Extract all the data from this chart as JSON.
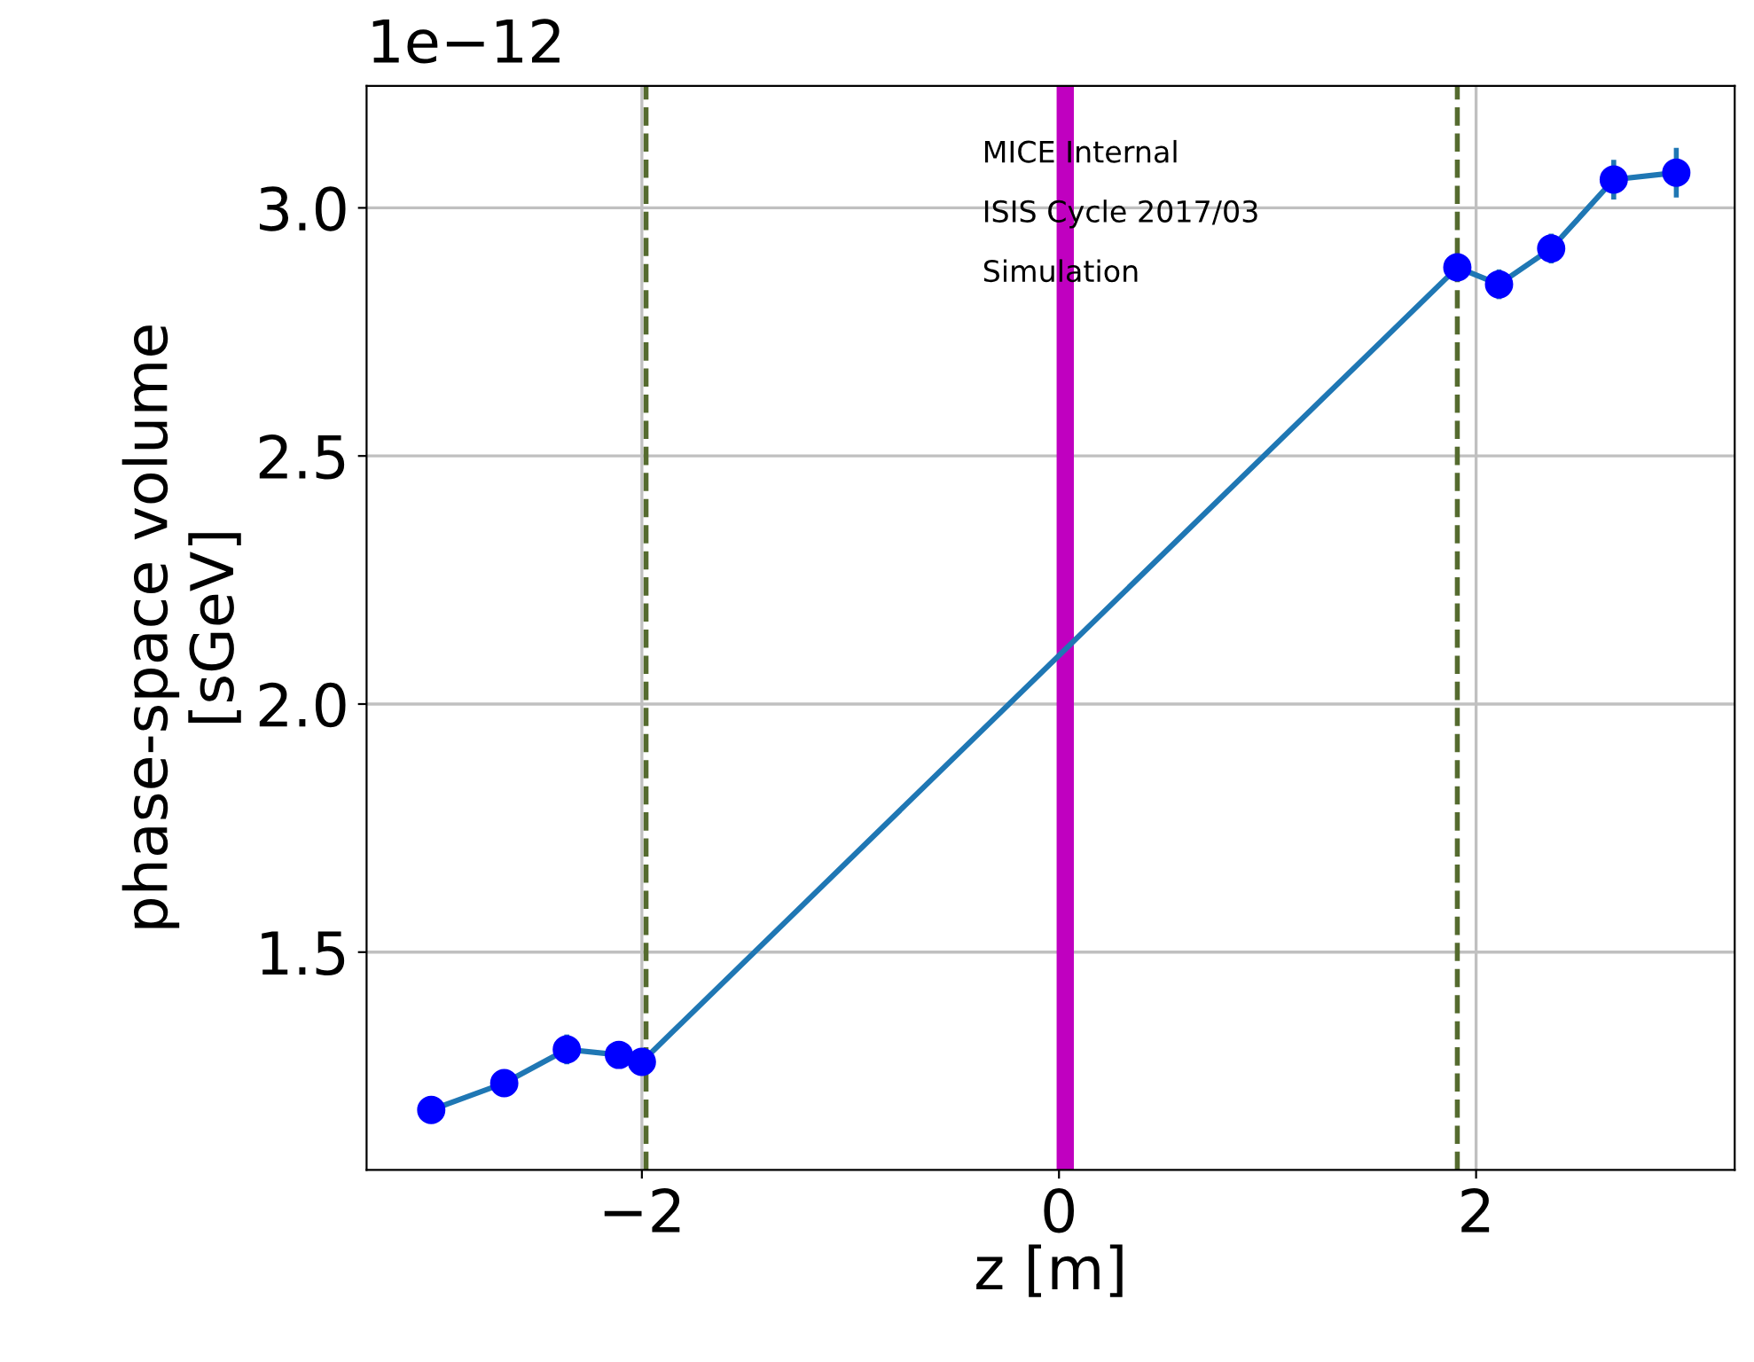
{
  "chart_data": {
    "type": "line",
    "xlabel": "z [m]",
    "ylabel": "phase-space volume\n[sGeV]",
    "x": [
      -3.01,
      -2.66,
      -2.36,
      -2.11,
      -2.0,
      1.91,
      2.11,
      2.36,
      2.66,
      2.96
    ],
    "series": [
      {
        "color": "#1f77b4",
        "values": [
          1.182,
          1.236,
          1.304,
          1.293,
          1.279,
          2.88,
          2.846,
          2.918,
          3.057,
          3.071
        ],
        "errors": [
          null,
          null,
          0.03,
          null,
          null,
          null,
          0.03,
          0.03,
          0.04,
          0.05
        ]
      }
    ],
    "marker": "circle",
    "line_style": "solid",
    "xlim": [
      -3.32,
      3.24
    ],
    "ylim": [
      1.061,
      3.246
    ],
    "xticks": [
      {
        "value": -2,
        "label": "−2"
      },
      0,
      2
    ],
    "yticks": [
      1.5,
      {
        "value": 2,
        "label": "2.0"
      },
      2.5,
      {
        "value": 3,
        "label": "3.0"
      }
    ],
    "grid": true,
    "ref_lines": [
      {
        "axis": "x",
        "value": 0.03,
        "color": "#c000c0",
        "line_style": "solid"
      },
      {
        "axis": "x",
        "value": -1.98,
        "color": "#556b2f",
        "line_style": "dashed"
      },
      {
        "axis": "x",
        "value": 1.91,
        "color": "#556b2f",
        "line_style": "dashed"
      }
    ],
    "annotations": [
      "1e−12",
      "MICE Internal",
      "ISIS Cycle 2017/03",
      "Simulation"
    ]
  }
}
